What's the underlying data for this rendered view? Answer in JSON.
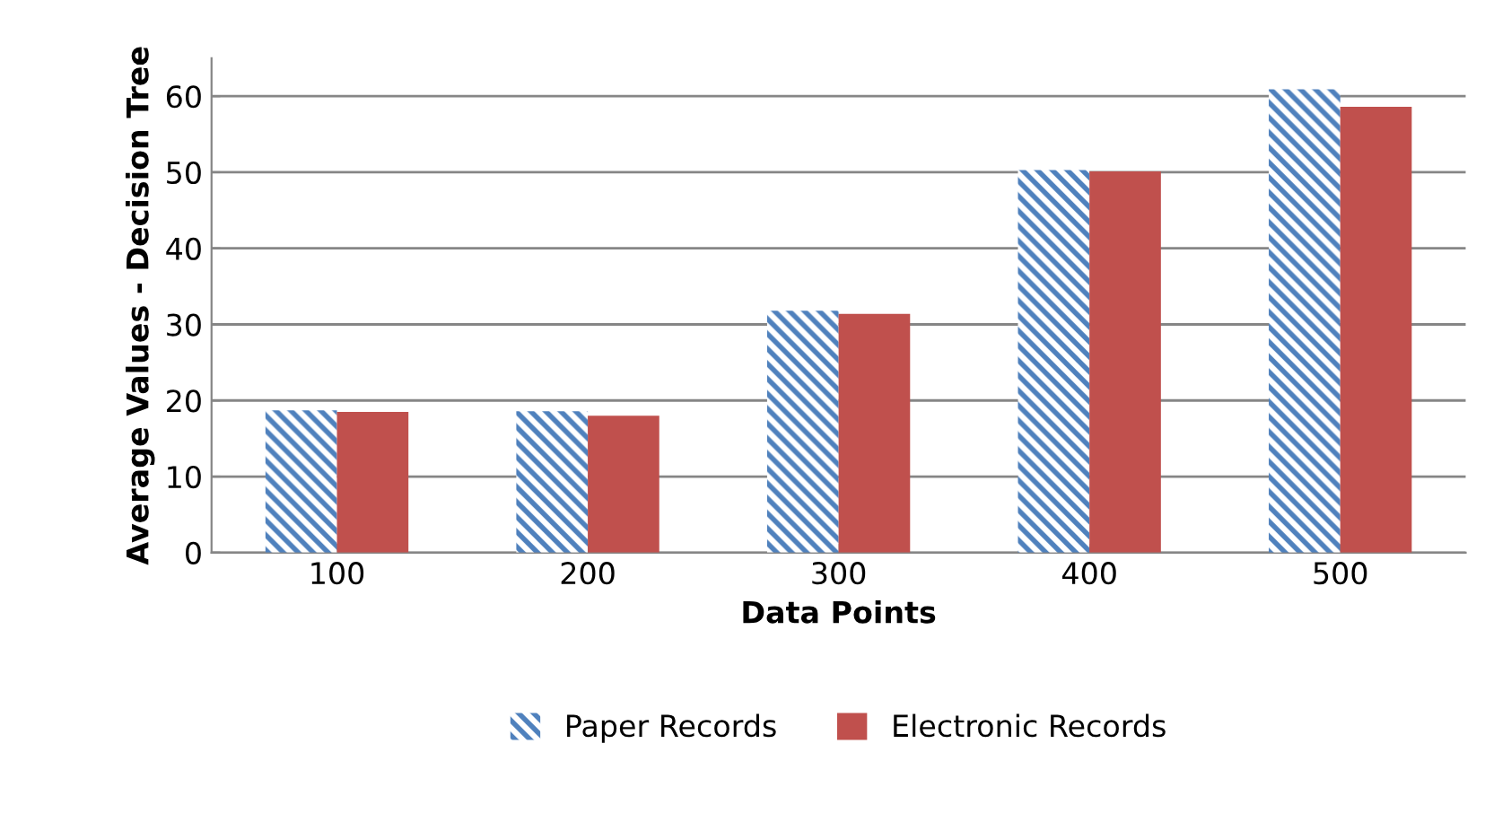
{
  "chart_data": {
    "type": "bar",
    "xlabel": "Data Points",
    "ylabel": "Average Values - Decision Tree",
    "categories": [
      "100",
      "200",
      "300",
      "400",
      "500"
    ],
    "series": [
      {
        "name": "Paper Records",
        "color": "#4f81bd",
        "values": [
          18.7,
          18.6,
          31.8,
          50.3,
          60.9
        ]
      },
      {
        "name": "Electronic Records",
        "color": "#c0504d",
        "values": [
          18.5,
          18.0,
          31.4,
          50.1,
          58.6
        ]
      }
    ],
    "ylim": [
      0,
      65
    ],
    "yticks": [
      0,
      10,
      20,
      30,
      40,
      50,
      60
    ],
    "grid": "y",
    "legend": "bottom"
  }
}
